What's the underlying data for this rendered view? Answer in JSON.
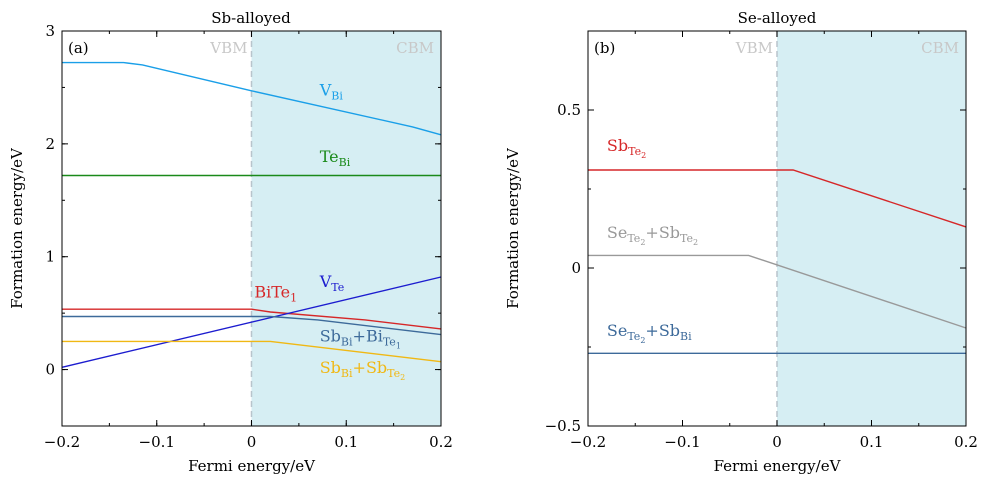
{
  "chart_data": [
    {
      "type": "line",
      "panel": "(a)",
      "title": "Sb-alloyed",
      "xlabel": "Fermi energy/eV",
      "ylabel": "Formation energy/eV",
      "xlim": [
        -0.2,
        0.2
      ],
      "ylim": [
        -0.5,
        3.0
      ],
      "xticks": [
        -0.2,
        -0.1,
        0,
        0.1,
        0.2
      ],
      "xtick_labels": [
        "−0.2",
        "−0.1",
        "0",
        "0.1",
        "0.2"
      ],
      "yticks": [
        0,
        1,
        2,
        3
      ],
      "ytick_labels": [
        "0",
        "1",
        "2",
        "3"
      ],
      "region_labels": {
        "left": "VBM",
        "right": "CBM"
      },
      "divider_x": 0,
      "shaded_region": [
        0,
        0.2
      ],
      "series": [
        {
          "name_main": "V",
          "name_sub": "Bi",
          "name_sub2": "",
          "name_plus": "",
          "name_main2": "",
          "name_sub_b": "",
          "name_sub_b2": "",
          "color": "#1a9fe8",
          "x": [
            -0.2,
            -0.135,
            -0.115,
            0.0,
            0.17,
            0.2
          ],
          "y": [
            2.72,
            2.72,
            2.7,
            2.47,
            2.15,
            2.08
          ],
          "label_at": [
            0.072,
            2.43
          ]
        },
        {
          "name_main": "Te",
          "name_sub": "Bi",
          "name_sub2": "",
          "name_plus": "",
          "name_main2": "",
          "name_sub_b": "",
          "name_sub_b2": "",
          "color": "#1a8a1a",
          "x": [
            -0.2,
            0.2
          ],
          "y": [
            1.72,
            1.72
          ],
          "label_at": [
            0.072,
            1.84
          ]
        },
        {
          "name_main": "BiTe",
          "name_sub": "1",
          "name_sub2": "",
          "name_plus": "",
          "name_main2": "",
          "name_sub_b": "",
          "name_sub_b2": "",
          "color": "#d62728",
          "x": [
            -0.2,
            0.0,
            0.02,
            0.12,
            0.2
          ],
          "y": [
            0.535,
            0.535,
            0.51,
            0.44,
            0.36
          ],
          "label_at": [
            0.003,
            0.64
          ]
        },
        {
          "name_main": "V",
          "name_sub": "Te",
          "name_sub2": "",
          "name_plus": "",
          "name_main2": "",
          "name_sub_b": "",
          "name_sub_b2": "",
          "color": "#1c1ccf",
          "x": [
            -0.2,
            0.2
          ],
          "y": [
            0.02,
            0.82
          ],
          "label_at": [
            0.072,
            0.73
          ]
        },
        {
          "name_main": "Sb",
          "name_sub": "Bi",
          "name_sub2": "",
          "name_plus": "+",
          "name_main2": "Bi",
          "name_sub_b": "Te",
          "name_sub_b2": "1",
          "color": "#3d6a9a",
          "x": [
            -0.2,
            0.02,
            0.07,
            0.2
          ],
          "y": [
            0.47,
            0.47,
            0.44,
            0.31
          ],
          "label_at": [
            0.072,
            0.25
          ]
        },
        {
          "name_main": "Sb",
          "name_sub": "Bi",
          "name_sub2": "",
          "name_plus": "+",
          "name_main2": "Sb",
          "name_sub_b": "Te",
          "name_sub_b2": "2",
          "color": "#f0b814",
          "x": [
            -0.2,
            0.02,
            0.2
          ],
          "y": [
            0.25,
            0.25,
            0.07
          ],
          "label_at": [
            0.072,
            -0.03
          ]
        }
      ]
    },
    {
      "type": "line",
      "panel": "(b)",
      "title": "Se-alloyed",
      "xlabel": "Fermi energy/eV",
      "ylabel": "Formation energy/eV",
      "xlim": [
        -0.2,
        0.2
      ],
      "ylim": [
        -0.5,
        0.75
      ],
      "xticks": [
        -0.2,
        -0.1,
        0,
        0.1,
        0.2
      ],
      "xtick_labels": [
        "−0.2",
        "−0.1",
        "0",
        "0.1",
        "0.2"
      ],
      "yticks": [
        -0.5,
        0,
        0.5
      ],
      "ytick_labels": [
        "−0.5",
        "0",
        "0.5"
      ],
      "region_labels": {
        "left": "VBM",
        "right": "CBM"
      },
      "divider_x": 0,
      "shaded_region": [
        0,
        0.2
      ],
      "series": [
        {
          "name_main": "Sb",
          "name_sub": "Te",
          "name_sub2": "2",
          "name_plus": "",
          "name_main2": "",
          "name_sub_b": "",
          "name_sub_b2": "",
          "color": "#d62728",
          "x": [
            -0.2,
            0.017,
            0.2
          ],
          "y": [
            0.31,
            0.31,
            0.13
          ],
          "label_at": [
            -0.18,
            0.37
          ]
        },
        {
          "name_main": "Se",
          "name_sub": "Te",
          "name_sub2": "2",
          "name_plus": "+",
          "name_main2": "Sb",
          "name_sub_b": "Te",
          "name_sub_b2": "2",
          "color": "#999999",
          "x": [
            -0.2,
            -0.03,
            0.2
          ],
          "y": [
            0.04,
            0.04,
            -0.19
          ],
          "label_at": [
            -0.18,
            0.095
          ]
        },
        {
          "name_main": "Se",
          "name_sub": "Te",
          "name_sub2": "2",
          "name_plus": "+",
          "name_main2": "Sb",
          "name_sub_b": "Bi",
          "name_sub_b2": "",
          "color": "#3d6a9a",
          "x": [
            -0.2,
            0.2
          ],
          "y": [
            -0.27,
            -0.27
          ],
          "label_at": [
            -0.18,
            -0.215
          ]
        }
      ]
    }
  ],
  "colors": {
    "shade": "#d6eef3",
    "divider": "#b8c4cc",
    "region_text": "#c8c8c8",
    "axis": "#000000"
  }
}
